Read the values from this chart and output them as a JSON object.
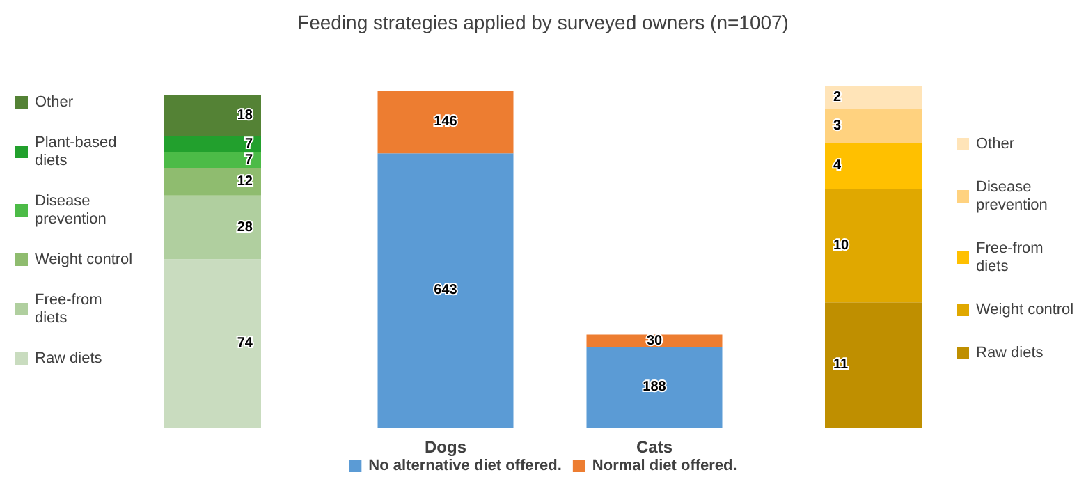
{
  "chart_data": [
    {
      "type": "bar",
      "categories": [
        null
      ],
      "stacked": true,
      "data_labels": true,
      "legend": "left",
      "tick_labels": false,
      "series": [
        {
          "name": "Raw diets",
          "color": "#c9dcbf",
          "values": [
            74
          ]
        },
        {
          "name": "Free-from diets",
          "color": "#b0cf9f",
          "values": [
            28
          ]
        },
        {
          "name": "Weight control",
          "color": "#8fbc6f",
          "values": [
            12
          ]
        },
        {
          "name": "Disease prevention",
          "color": "#4cbb47",
          "values": [
            7
          ]
        },
        {
          "name": "Plant-based diets",
          "color": "#22a02d",
          "values": [
            7
          ]
        },
        {
          "name": "Other",
          "color": "#548235",
          "values": [
            18
          ]
        }
      ]
    },
    {
      "type": "bar",
      "title": "Feeding strategies applied by surveyed owners (n=1007)",
      "categories": [
        "Dogs",
        "Cats"
      ],
      "stacked": true,
      "data_labels": true,
      "legend": "bottom",
      "tick_labels": "x",
      "ylim": [
        0,
        800
      ],
      "series": [
        {
          "name": "No alternative diet offered.",
          "color": "#5b9bd5",
          "values": [
            643,
            188
          ]
        },
        {
          "name": "Normal diet offered.",
          "color": "#ed7d31",
          "values": [
            146,
            30
          ]
        }
      ]
    },
    {
      "type": "bar",
      "categories": [
        null
      ],
      "stacked": true,
      "data_labels": true,
      "legend": "right",
      "tick_labels": false,
      "series": [
        {
          "name": "Raw diets",
          "color": "#bf8f00",
          "values": [
            11
          ]
        },
        {
          "name": "Weight control",
          "color": "#e0a800",
          "values": [
            10
          ]
        },
        {
          "name": "Free-from diets",
          "color": "#ffc000",
          "values": [
            4
          ]
        },
        {
          "name": "Disease prevention",
          "color": "#ffd27f",
          "values": [
            3
          ]
        },
        {
          "name": "Other",
          "color": "#ffe4b8",
          "values": [
            2
          ]
        }
      ]
    }
  ]
}
